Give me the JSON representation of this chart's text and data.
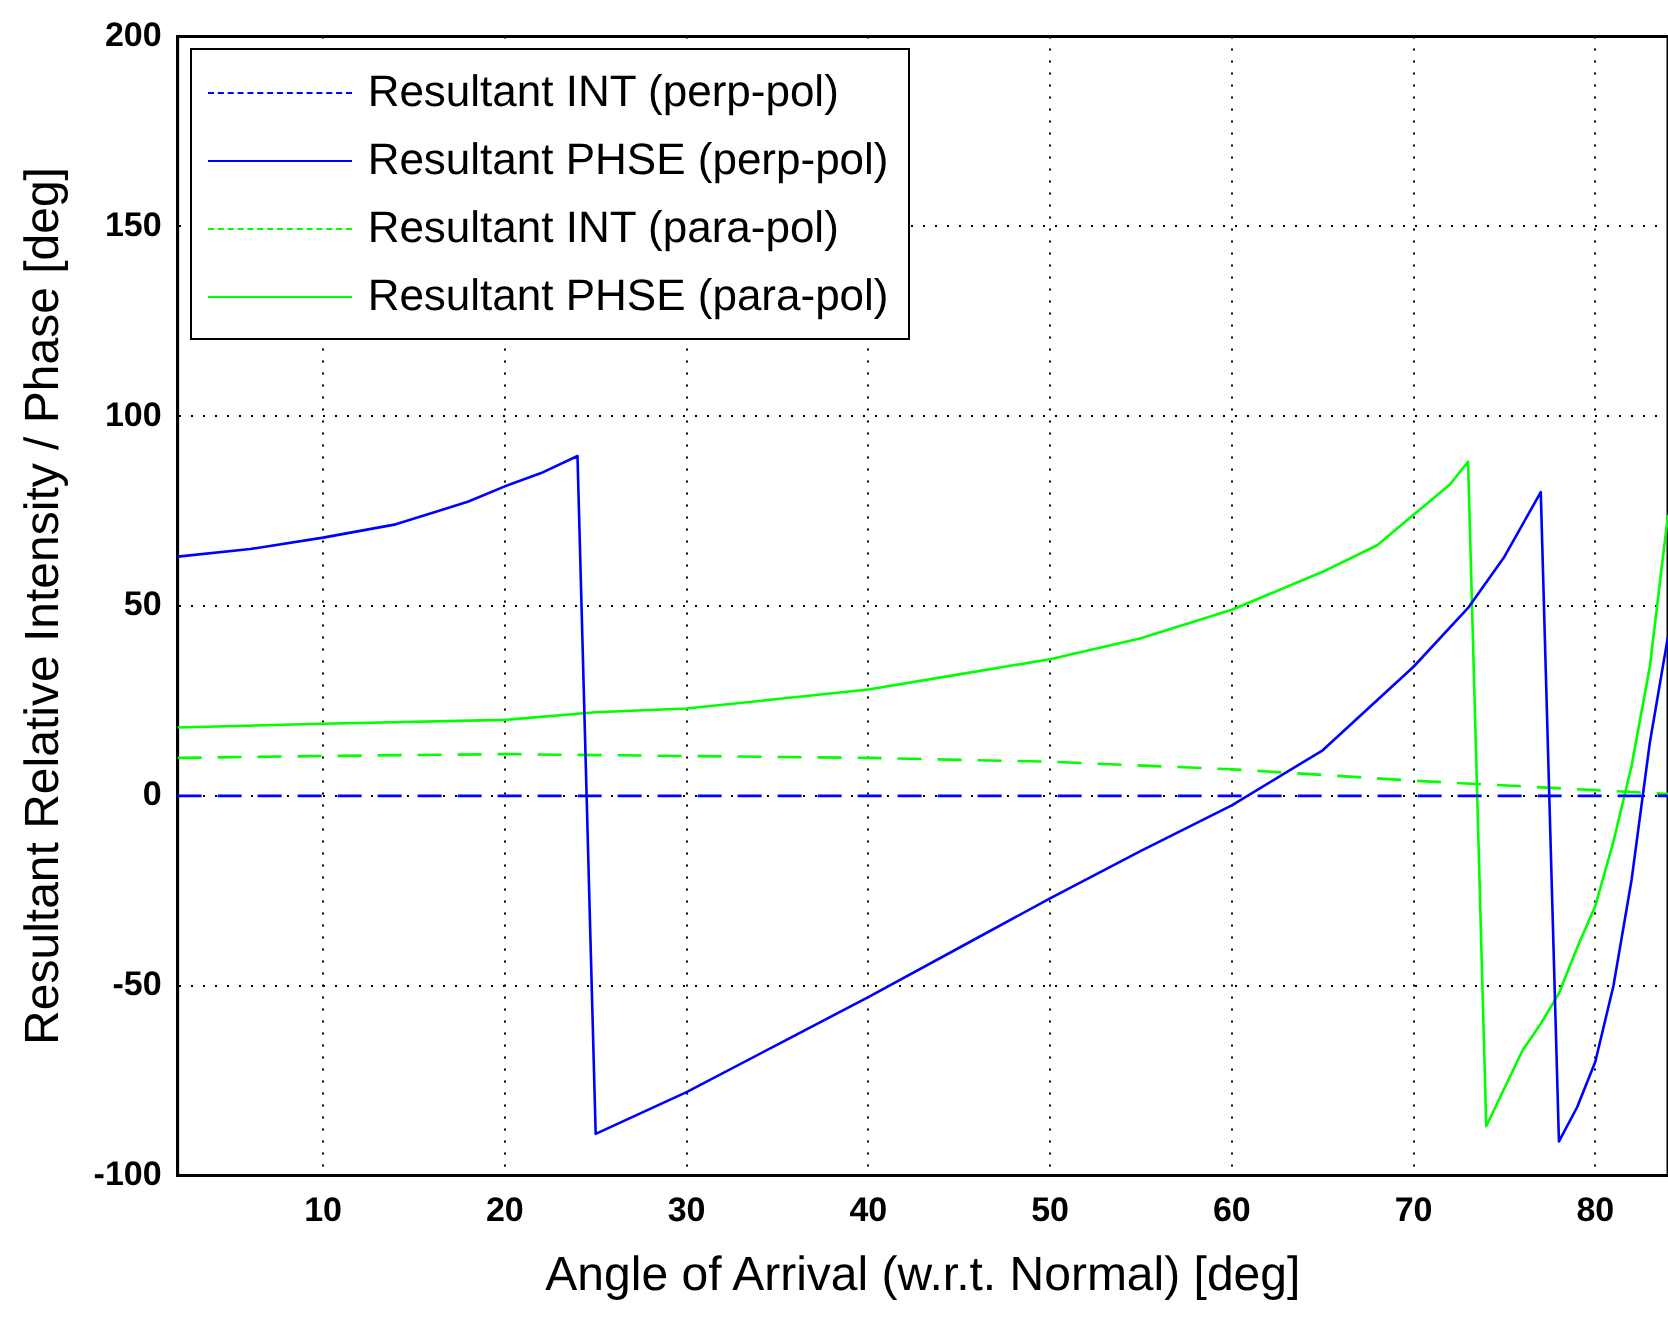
{
  "chart_data": {
    "type": "line",
    "xlabel": "Angle of Arrival (w.r.t. Normal) [deg]",
    "ylabel": "Resultant Relative Intensity / Phase [deg]",
    "xlim": [
      2,
      84
    ],
    "xticks": [
      10,
      20,
      30,
      40,
      50,
      60,
      70,
      80
    ],
    "ylim": [
      -100,
      200
    ],
    "yticks": [
      -100,
      -50,
      0,
      50,
      100,
      150,
      200
    ],
    "grid": true,
    "legend": "top left",
    "marker": "none",
    "series": [
      {
        "name": "Resultant INT (perp-pol)",
        "color": "#0000ff",
        "line_style": "dashed",
        "x": [
          2,
          84
        ],
        "values": [
          0,
          0
        ]
      },
      {
        "name": "Resultant PHSE (perp-pol)",
        "color": "#0000ff",
        "line_style": "solid",
        "x": [
          2,
          6,
          10,
          14,
          18,
          20,
          22,
          24,
          25,
          30,
          35,
          40,
          45,
          50,
          55,
          60,
          65,
          70,
          73,
          75,
          77,
          78,
          79,
          80,
          81,
          82,
          83,
          84
        ],
        "values": [
          63,
          65,
          68,
          71.5,
          77.5,
          81.5,
          85,
          89.5,
          -89,
          -78,
          -65.5,
          -53,
          -40,
          -27,
          -14.5,
          -2.5,
          12,
          34,
          49.5,
          63,
          80,
          -91,
          -82,
          -70,
          -50,
          -22,
          14,
          42
        ]
      },
      {
        "name": "Resultant INT (para-pol)",
        "color": "#00ff00",
        "line_style": "dashed",
        "x": [
          2,
          10,
          20,
          30,
          40,
          50,
          60,
          70,
          80,
          84
        ],
        "values": [
          10,
          10.5,
          11,
          10.5,
          10,
          9,
          7,
          4,
          1.5,
          0.5
        ]
      },
      {
        "name": "Resultant PHSE (para-pol)",
        "color": "#00ff00",
        "line_style": "solid",
        "x": [
          2,
          10,
          20,
          25,
          30,
          35,
          40,
          45,
          50,
          55,
          60,
          65,
          68,
          70,
          72,
          73,
          74,
          75,
          76,
          77,
          78,
          79,
          80,
          81,
          82,
          83,
          84
        ],
        "values": [
          18,
          19,
          20,
          22,
          23,
          25.5,
          28,
          32,
          36,
          41.5,
          49,
          59,
          66,
          74,
          82,
          88,
          -87,
          -77,
          -67,
          -60,
          -52,
          -40,
          -29,
          -12,
          8,
          34,
          74
        ]
      }
    ]
  }
}
